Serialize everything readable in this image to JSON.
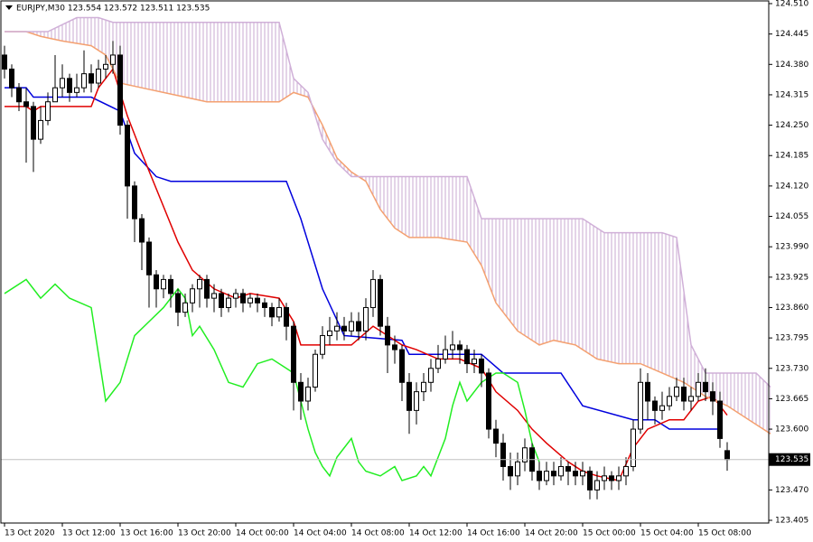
{
  "chart_data": {
    "type": "candlestick",
    "title": "EURJPY,M30  123.554 123.572 123.511 123.535",
    "current_price": 123.535,
    "ylim": [
      123.405,
      124.51
    ],
    "yticks": [
      {
        "value": 124.51,
        "label": "124.510"
      },
      124.445,
      {
        "value": 124.38,
        "label": "124.380"
      },
      124.315,
      {
        "value": 124.25,
        "label": "124.250"
      },
      124.185,
      {
        "value": 124.12,
        "label": "124.120"
      },
      124.055,
      {
        "value": 123.99,
        "label": "123.990"
      },
      123.925,
      {
        "value": 123.86,
        "label": "123.860"
      },
      123.795,
      {
        "value": 123.73,
        "label": "123.730"
      },
      123.665,
      {
        "value": 123.6,
        "label": "123.600"
      },
      {
        "value": 123.47,
        "label": "123.470"
      },
      123.405
    ],
    "xlim": [
      -0.5,
      105.5
    ],
    "xticks": [
      {
        "value": 0,
        "label": "13 Oct 2020"
      },
      {
        "value": 8,
        "label": "13 Oct 12:00"
      },
      {
        "value": 16,
        "label": "13 Oct 16:00"
      },
      {
        "value": 24,
        "label": "13 Oct 20:00"
      },
      {
        "value": 32,
        "label": "14 Oct 00:00"
      },
      {
        "value": 40,
        "label": "14 Oct 04:00"
      },
      {
        "value": 48,
        "label": "14 Oct 08:00"
      },
      {
        "value": 56,
        "label": "14 Oct 12:00"
      },
      {
        "value": 64,
        "label": "14 Oct 16:00"
      },
      {
        "value": 72,
        "label": "14 Oct 20:00"
      },
      {
        "value": 80,
        "label": "15 Oct 00:00"
      },
      {
        "value": 88,
        "label": "15 Oct 04:00"
      },
      {
        "value": 96,
        "label": "15 Oct 08:00"
      }
    ],
    "candles": {
      "bull_color": "#ffffff",
      "bear_color": "#000000",
      "open": [
        124.4,
        124.37,
        124.33,
        124.3,
        124.29,
        124.22,
        124.26,
        124.3,
        124.33,
        124.35,
        124.32,
        124.33,
        124.36,
        124.34,
        124.37,
        124.38,
        124.4,
        124.25,
        124.12,
        124.05,
        124.0,
        123.93,
        123.9,
        123.92,
        123.89,
        123.85,
        123.87,
        123.9,
        123.92,
        123.88,
        123.89,
        123.86,
        123.88,
        123.89,
        123.87,
        123.88,
        123.87,
        123.86,
        123.84,
        123.86,
        123.82,
        123.7,
        123.66,
        123.69,
        123.76,
        123.8,
        123.81,
        123.82,
        123.81,
        123.83,
        123.81,
        123.86,
        123.92,
        123.82,
        123.78,
        123.77,
        123.7,
        123.64,
        123.68,
        123.7,
        123.73,
        123.75,
        123.77,
        123.78,
        123.77,
        123.74,
        123.75,
        123.72,
        123.6,
        123.57,
        123.52,
        123.5,
        123.53,
        123.56,
        123.51,
        123.49,
        123.51,
        123.5,
        123.52,
        123.51,
        123.5,
        123.51,
        123.47,
        123.49,
        123.5,
        123.49,
        123.5,
        123.52,
        123.6,
        123.7,
        123.66,
        123.64,
        123.65,
        123.67,
        123.69,
        123.66,
        123.67,
        123.7,
        123.68,
        123.66,
        123.554
      ],
      "high": [
        124.42,
        124.38,
        124.34,
        124.33,
        124.3,
        124.29,
        124.32,
        124.4,
        124.38,
        124.36,
        124.36,
        124.41,
        124.38,
        124.39,
        124.4,
        124.43,
        124.42,
        124.26,
        124.13,
        124.06,
        124.01,
        123.94,
        123.93,
        123.93,
        123.9,
        123.89,
        123.91,
        123.93,
        123.93,
        123.91,
        123.9,
        123.89,
        123.9,
        123.9,
        123.89,
        123.89,
        123.88,
        123.87,
        123.88,
        123.87,
        123.83,
        123.72,
        123.71,
        123.77,
        123.82,
        123.84,
        123.85,
        123.84,
        123.85,
        123.85,
        123.88,
        123.94,
        123.93,
        123.84,
        123.8,
        123.78,
        123.72,
        123.7,
        123.72,
        123.75,
        123.78,
        123.8,
        123.81,
        123.79,
        123.78,
        123.77,
        123.76,
        123.73,
        123.62,
        123.59,
        123.55,
        123.55,
        123.58,
        123.57,
        123.53,
        123.53,
        123.53,
        123.54,
        123.53,
        123.53,
        123.53,
        123.52,
        123.51,
        123.52,
        123.51,
        123.52,
        123.54,
        123.62,
        123.73,
        123.72,
        123.67,
        123.68,
        123.69,
        123.71,
        123.71,
        123.69,
        123.72,
        123.73,
        123.7,
        123.68,
        123.572
      ],
      "low": [
        124.35,
        124.31,
        124.28,
        124.17,
        124.15,
        124.21,
        124.25,
        124.3,
        124.31,
        124.3,
        124.31,
        124.32,
        124.32,
        124.33,
        124.35,
        124.36,
        124.23,
        124.05,
        124.0,
        123.94,
        123.86,
        123.86,
        123.88,
        123.86,
        123.82,
        123.84,
        123.85,
        123.86,
        123.86,
        123.85,
        123.84,
        123.85,
        123.86,
        123.85,
        123.86,
        123.85,
        123.84,
        123.82,
        123.83,
        123.79,
        123.64,
        123.62,
        123.64,
        123.68,
        123.75,
        123.78,
        123.79,
        123.79,
        123.8,
        123.79,
        123.79,
        123.84,
        123.8,
        123.72,
        123.74,
        123.66,
        123.59,
        123.61,
        123.66,
        123.68,
        123.72,
        123.74,
        123.75,
        123.74,
        123.72,
        123.72,
        123.69,
        123.58,
        123.54,
        123.49,
        123.47,
        123.48,
        123.51,
        123.49,
        123.47,
        123.48,
        123.48,
        123.49,
        123.48,
        123.48,
        123.48,
        123.45,
        123.45,
        123.47,
        123.47,
        123.47,
        123.48,
        123.51,
        123.59,
        123.62,
        123.61,
        123.62,
        123.64,
        123.66,
        123.64,
        123.64,
        123.66,
        123.66,
        123.63,
        123.56,
        123.511
      ],
      "close": [
        124.37,
        124.33,
        124.3,
        124.29,
        124.22,
        124.26,
        124.3,
        124.33,
        124.35,
        124.32,
        124.33,
        124.36,
        124.34,
        124.37,
        124.38,
        124.4,
        124.25,
        124.12,
        124.05,
        124.0,
        123.93,
        123.9,
        123.92,
        123.89,
        123.85,
        123.87,
        123.9,
        123.92,
        123.88,
        123.89,
        123.86,
        123.88,
        123.89,
        123.87,
        123.88,
        123.87,
        123.86,
        123.84,
        123.86,
        123.82,
        123.7,
        123.66,
        123.69,
        123.76,
        123.8,
        123.81,
        123.82,
        123.81,
        123.83,
        123.81,
        123.86,
        123.92,
        123.82,
        123.78,
        123.77,
        123.7,
        123.64,
        123.68,
        123.7,
        123.73,
        123.75,
        123.77,
        123.78,
        123.77,
        123.74,
        123.75,
        123.72,
        123.6,
        123.57,
        123.52,
        123.5,
        123.53,
        123.56,
        123.51,
        123.49,
        123.51,
        123.5,
        123.52,
        123.51,
        123.5,
        123.51,
        123.47,
        123.49,
        123.5,
        123.49,
        123.5,
        123.52,
        123.6,
        123.7,
        123.66,
        123.64,
        123.65,
        123.67,
        123.69,
        123.66,
        123.67,
        123.7,
        123.68,
        123.66,
        123.58,
        123.535
      ]
    },
    "cloud_color": "#c8a8d0",
    "lines": [
      {
        "color": "#0000dd",
        "x": [
          0,
          3,
          4,
          12,
          16,
          18,
          21,
          23,
          39,
          41,
          44,
          47,
          55,
          56,
          66,
          69,
          77,
          80,
          87,
          90,
          92,
          99
        ],
        "values": [
          124.33,
          124.33,
          124.31,
          124.31,
          124.28,
          124.19,
          124.14,
          124.13,
          124.13,
          124.05,
          123.9,
          123.8,
          123.79,
          123.76,
          123.76,
          123.72,
          123.72,
          123.65,
          123.62,
          123.62,
          123.6,
          123.6
        ]
      },
      {
        "color": "#e00000",
        "x": [
          0,
          3,
          4,
          5,
          8,
          12,
          13,
          15,
          17,
          19,
          24,
          26,
          29,
          32,
          34,
          38,
          40,
          41,
          44,
          48,
          51,
          53,
          55,
          57,
          60,
          63,
          66,
          68,
          71,
          73,
          75,
          78,
          80,
          82,
          85,
          87,
          89,
          92,
          94,
          96,
          98,
          100
        ],
        "values": [
          124.29,
          124.29,
          124.28,
          124.29,
          124.29,
          124.29,
          124.33,
          124.37,
          124.27,
          124.19,
          124.0,
          123.94,
          123.9,
          123.88,
          123.89,
          123.88,
          123.83,
          123.78,
          123.78,
          123.78,
          123.82,
          123.8,
          123.78,
          123.77,
          123.75,
          123.75,
          123.73,
          123.68,
          123.64,
          123.6,
          123.57,
          123.53,
          123.51,
          123.5,
          123.49,
          123.56,
          123.6,
          123.62,
          123.62,
          123.66,
          123.67,
          123.63
        ]
      },
      {
        "color": "#22ee22",
        "x": [
          0,
          3,
          4,
          5,
          7,
          9,
          12,
          14,
          16,
          18,
          20,
          22,
          24,
          25,
          26,
          27,
          29,
          31,
          33,
          35,
          37,
          39,
          40,
          41,
          42,
          43,
          44,
          45,
          46,
          47,
          48,
          49,
          50,
          52,
          54,
          55,
          57,
          58,
          59,
          61,
          62,
          63,
          64,
          66,
          68,
          69,
          71,
          72,
          73,
          74
        ],
        "values": [
          123.89,
          123.92,
          123.9,
          123.88,
          123.91,
          123.88,
          123.86,
          123.66,
          123.7,
          123.8,
          123.83,
          123.86,
          123.9,
          123.88,
          123.8,
          123.82,
          123.77,
          123.7,
          123.69,
          123.74,
          123.75,
          123.73,
          123.72,
          123.66,
          123.6,
          123.55,
          123.52,
          123.5,
          123.54,
          123.56,
          123.58,
          123.53,
          123.51,
          123.5,
          123.52,
          123.49,
          123.5,
          123.52,
          123.5,
          123.58,
          123.65,
          123.7,
          123.66,
          123.7,
          123.72,
          123.72,
          123.7,
          123.64,
          123.57,
          123.53
        ]
      },
      {
        "color": "#f4a070",
        "x": [
          0,
          3,
          5,
          8,
          12,
          14,
          16,
          19,
          22,
          25,
          28,
          32,
          38,
          40,
          42,
          44,
          46,
          48,
          50,
          52,
          54,
          56,
          60,
          64,
          66,
          68,
          71,
          74,
          76,
          79,
          82,
          85,
          88,
          91,
          94,
          97,
          100,
          103,
          106
        ],
        "values": [
          124.45,
          124.45,
          124.44,
          124.43,
          124.42,
          124.4,
          124.34,
          124.33,
          124.32,
          124.31,
          124.3,
          124.3,
          124.3,
          124.32,
          124.31,
          124.25,
          124.18,
          124.15,
          124.13,
          124.07,
          124.03,
          124.01,
          124.01,
          124.0,
          123.95,
          123.87,
          123.81,
          123.78,
          123.79,
          123.78,
          123.75,
          123.74,
          123.74,
          123.72,
          123.7,
          123.67,
          123.65,
          123.62,
          123.59
        ]
      },
      {
        "color": "#d0b0d8",
        "x": [
          0,
          4,
          6,
          10,
          13,
          15,
          38,
          40,
          42,
          44,
          46,
          48,
          64,
          66,
          80,
          83,
          91,
          93,
          95,
          97,
          104,
          106
        ],
        "values": [
          124.45,
          124.45,
          124.45,
          124.48,
          124.48,
          124.47,
          124.47,
          124.35,
          124.32,
          124.22,
          124.17,
          124.14,
          124.14,
          124.05,
          124.05,
          124.02,
          124.02,
          124.01,
          123.78,
          123.72,
          123.72,
          123.69
        ]
      }
    ]
  }
}
